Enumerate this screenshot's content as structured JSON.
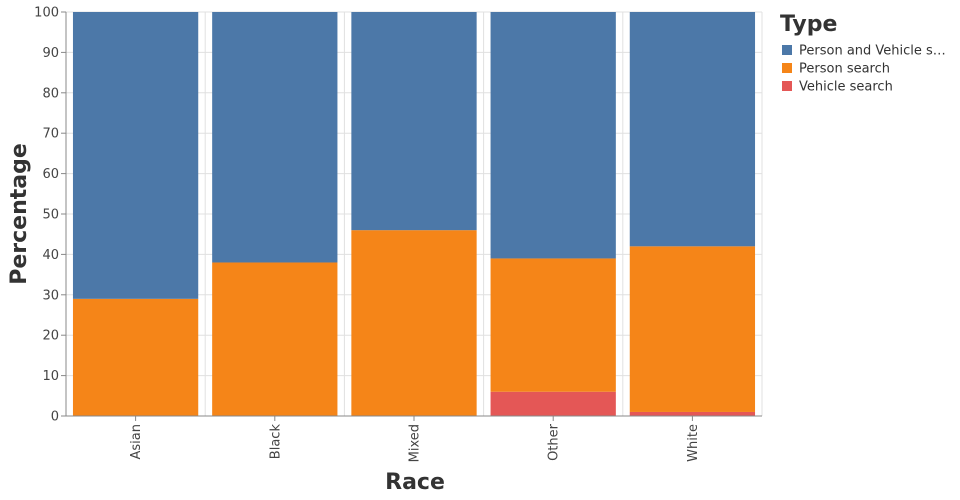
{
  "chart_data": {
    "type": "bar",
    "stacked": true,
    "categories": [
      "Asian",
      "Black",
      "Mixed",
      "Other",
      "White"
    ],
    "series": [
      {
        "name": "Vehicle search",
        "color": "#e45756",
        "values": [
          0,
          0,
          0,
          6,
          1
        ]
      },
      {
        "name": "Person search",
        "color": "#f58518",
        "values": [
          29,
          38,
          46,
          33,
          41
        ]
      },
      {
        "name": "Person and Vehicle search",
        "color": "#4c78a8",
        "values": [
          71,
          62,
          54,
          61,
          58
        ]
      }
    ],
    "ylabel": "Percentage",
    "xlabel": "Race",
    "ylim": [
      0,
      100
    ],
    "yticks": [
      0,
      10,
      20,
      30,
      40,
      50,
      60,
      70,
      80,
      90,
      100
    ],
    "grid": true,
    "legend": {
      "title": "Type",
      "position": "right",
      "entries": [
        {
          "label": "Person and Vehicle s…",
          "color": "#4c78a8"
        },
        {
          "label": "Person search",
          "color": "#f58518"
        },
        {
          "label": "Vehicle search",
          "color": "#e45756"
        }
      ]
    }
  }
}
